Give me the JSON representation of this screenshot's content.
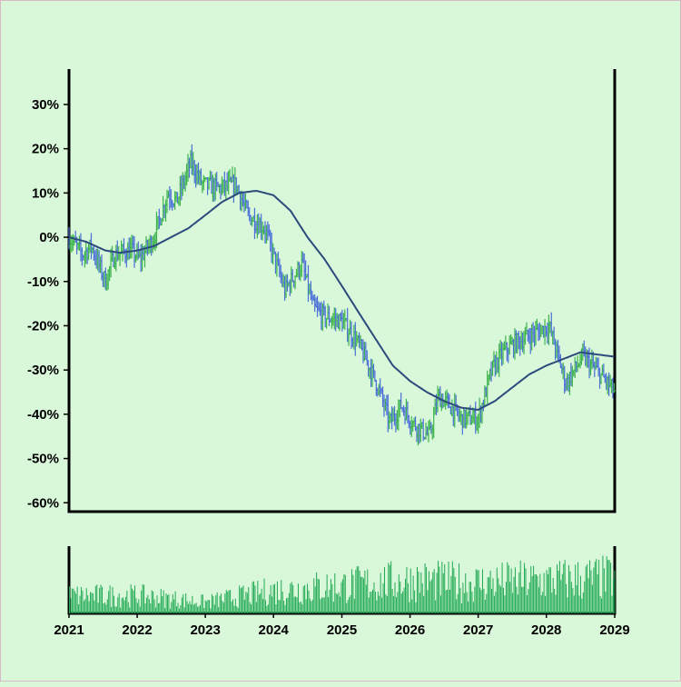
{
  "chart_data": {
    "type": "ohlc",
    "title": "",
    "xlabel": "",
    "ylabel": "",
    "y_unit": "%",
    "ylim": [
      -62,
      38
    ],
    "y_ticks": [
      30,
      20,
      10,
      0,
      -10,
      -20,
      -30,
      -40,
      -50,
      -60
    ],
    "y_tick_labels": [
      "30%",
      "20%",
      "10%",
      "0%",
      "-10%",
      "-20%",
      "-30%",
      "-40%",
      "-50%",
      "-60%"
    ],
    "x_range": [
      "2021-01-01",
      "2029-01-01"
    ],
    "x_ticks": [
      "2021",
      "2022",
      "2023",
      "2024",
      "2025",
      "2026",
      "2027",
      "2028",
      "2029"
    ],
    "grid": false,
    "legend": "none",
    "price_series": {
      "name": "",
      "frequency": "weekly",
      "bar_colors": {
        "up": "#3cb44b",
        "down": "#4a6fd8"
      },
      "path": [
        [
          "2021-01-01",
          0
        ],
        [
          "2021-03-15",
          -4
        ],
        [
          "2021-05-01",
          -2
        ],
        [
          "2021-07-15",
          -10
        ],
        [
          "2021-09-01",
          -4
        ],
        [
          "2021-12-01",
          -3
        ],
        [
          "2022-01-15",
          -5
        ],
        [
          "2022-04-01",
          0
        ],
        [
          "2022-06-15",
          10
        ],
        [
          "2022-08-01",
          8
        ],
        [
          "2022-10-15",
          17
        ],
        [
          "2022-12-15",
          12
        ],
        [
          "2023-03-15",
          11
        ],
        [
          "2023-06-15",
          12
        ],
        [
          "2023-08-15",
          5
        ],
        [
          "2023-11-15",
          2
        ],
        [
          "2024-03-01",
          -12
        ],
        [
          "2024-06-01",
          -6
        ],
        [
          "2024-08-01",
          -16
        ],
        [
          "2024-10-01",
          -18
        ],
        [
          "2025-01-01",
          -19
        ],
        [
          "2025-03-15",
          -23
        ],
        [
          "2025-05-15",
          -28
        ],
        [
          "2025-07-15",
          -34
        ],
        [
          "2025-09-15",
          -42
        ],
        [
          "2025-11-15",
          -38
        ],
        [
          "2026-01-15",
          -42
        ],
        [
          "2026-04-15",
          -45
        ],
        [
          "2026-06-01",
          -36
        ],
        [
          "2026-08-01",
          -38
        ],
        [
          "2026-10-01",
          -41
        ],
        [
          "2027-01-01",
          -41
        ],
        [
          "2027-03-15",
          -30
        ],
        [
          "2027-05-15",
          -26
        ],
        [
          "2027-07-15",
          -24
        ],
        [
          "2027-10-15",
          -22
        ],
        [
          "2028-01-15",
          -20
        ],
        [
          "2028-04-15",
          -33
        ],
        [
          "2028-07-15",
          -27
        ],
        [
          "2028-10-15",
          -31
        ],
        [
          "2029-01-01",
          -35
        ]
      ]
    },
    "moving_average": {
      "name": "",
      "color": "#2c4a7c",
      "points": [
        [
          "2021-01-01",
          0
        ],
        [
          "2021-04-01",
          -1
        ],
        [
          "2021-07-15",
          -3
        ],
        [
          "2021-10-01",
          -3.5
        ],
        [
          "2022-01-01",
          -3
        ],
        [
          "2022-04-01",
          -2
        ],
        [
          "2022-07-01",
          0
        ],
        [
          "2022-10-01",
          2
        ],
        [
          "2023-01-01",
          5
        ],
        [
          "2023-04-01",
          8
        ],
        [
          "2023-07-01",
          10
        ],
        [
          "2023-10-01",
          10.5
        ],
        [
          "2024-01-01",
          9.5
        ],
        [
          "2024-04-01",
          6
        ],
        [
          "2024-07-01",
          0
        ],
        [
          "2024-10-01",
          -5
        ],
        [
          "2025-01-01",
          -11
        ],
        [
          "2025-04-01",
          -17
        ],
        [
          "2025-07-01",
          -23
        ],
        [
          "2025-10-01",
          -29
        ],
        [
          "2026-01-01",
          -32.5
        ],
        [
          "2026-04-01",
          -35
        ],
        [
          "2026-07-01",
          -37
        ],
        [
          "2026-10-01",
          -38.5
        ],
        [
          "2027-01-01",
          -39
        ],
        [
          "2027-04-01",
          -37
        ],
        [
          "2027-07-01",
          -34
        ],
        [
          "2027-10-01",
          -31
        ],
        [
          "2028-01-01",
          -29
        ],
        [
          "2028-04-01",
          -27.5
        ],
        [
          "2028-07-01",
          -26
        ],
        [
          "2028-10-01",
          -26.5
        ],
        [
          "2029-01-01",
          -27
        ]
      ]
    },
    "volume": {
      "color": "#22aa55",
      "relative_max": 1.0,
      "trend": [
        [
          "2021-01-01",
          0.35
        ],
        [
          "2022-01-01",
          0.35
        ],
        [
          "2023-01-01",
          0.22
        ],
        [
          "2024-01-01",
          0.45
        ],
        [
          "2025-01-01",
          0.55
        ],
        [
          "2026-01-01",
          0.65
        ],
        [
          "2027-01-01",
          0.6
        ],
        [
          "2028-01-01",
          0.65
        ],
        [
          "2029-01-01",
          0.7
        ]
      ]
    }
  }
}
